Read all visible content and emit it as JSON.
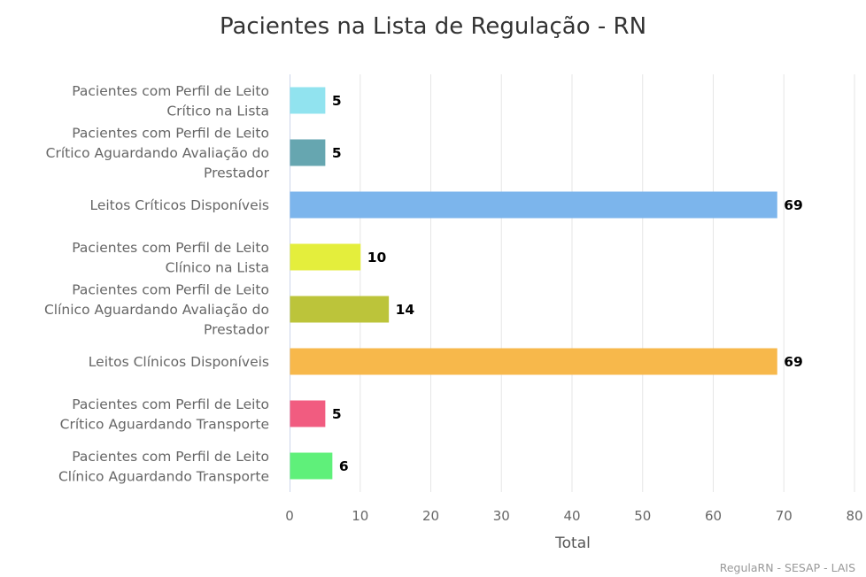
{
  "chart_data": {
    "type": "bar",
    "orientation": "horizontal",
    "title": "Pacientes na Lista de Regulação - RN",
    "xlabel": "Total",
    "xlim": [
      0,
      80
    ],
    "xticks": [
      0,
      10,
      20,
      30,
      40,
      50,
      60,
      70,
      80
    ],
    "grid": true,
    "legend": "none",
    "categories": [
      [
        "Pacientes com Perfil de Leito",
        "Crítico na Lista"
      ],
      [
        "Pacientes com Perfil de Leito",
        "Crítico Aguardando Avaliação do",
        "Prestador"
      ],
      [
        "Leitos Críticos Disponíveis"
      ],
      [
        "Pacientes com Perfil de Leito",
        "Clínico na Lista"
      ],
      [
        "Pacientes com Perfil de Leito",
        "Clínico Aguardando Avaliação do",
        "Prestador"
      ],
      [
        "Leitos Clínicos Disponíveis"
      ],
      [
        "Pacientes com Perfil de Leito",
        "Crítico Aguardando Transporte"
      ],
      [
        "Pacientes com Perfil de Leito",
        "Clínico Aguardando Transporte"
      ]
    ],
    "values": [
      5,
      5,
      69,
      10,
      14,
      69,
      5,
      6
    ],
    "colors": [
      "#91e3ef",
      "#66a6b0",
      "#7cb5ec",
      "#e4ee3c",
      "#bcc43a",
      "#f7b84b",
      "#f15c80",
      "#5ff07a"
    ],
    "credits": "RegulaRN - SESAP - LAIS"
  }
}
